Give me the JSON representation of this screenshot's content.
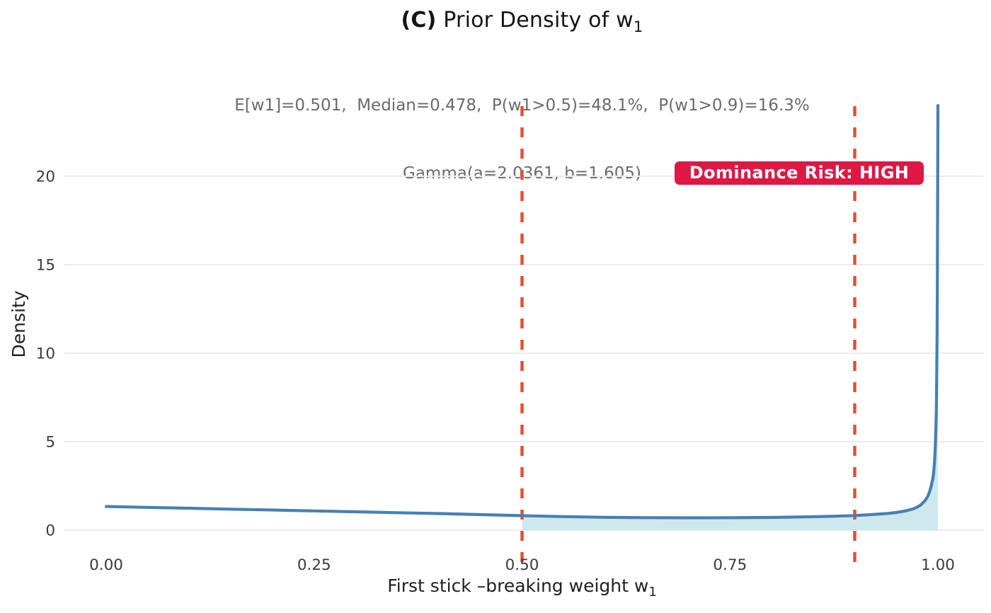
{
  "title": {
    "prefix": "(C)",
    "main": " Prior Density of w",
    "subscript": "1"
  },
  "subtitle": {
    "line1": "E[w1]=0.501,  Median=0.478,  P(w1>0.5)=48.1%,  P(w1>0.9)=16.3%",
    "line2": "Gamma(a=2.0361, b=1.605)"
  },
  "badge": {
    "label": "Dominance Risk: HIGH",
    "bg_color": "#dc1843",
    "text_color": "#ffffff"
  },
  "axes": {
    "xlabel_main": "First stick –breaking weight w",
    "xlabel_subscript": "1",
    "ylabel": "Density"
  },
  "colors": {
    "curve": "#4680b2",
    "area_fill": "#cde9ee",
    "dashed_line": "#e05038",
    "grid": "#ececec",
    "tick_label": "#3b3b3b",
    "subtitle_text": "#6b6b6b",
    "background": "#ffffff"
  },
  "chart_data": {
    "type": "area",
    "title": "(C) Prior Density of w1",
    "subtitle": "E[w1]=0.501, Median=0.478, P(w1>0.5)=48.1%, P(w1>0.9)=16.3%; Gamma(a=2.0361, b=1.605)",
    "xlabel": "First stick-breaking weight w1",
    "ylabel": "Density",
    "xlim": [
      -0.05,
      1.05
    ],
    "ylim": [
      -2.0,
      24.2
    ],
    "grid": "horizontal-only",
    "legend": "none",
    "x_ticks": {
      "values": [
        0.0,
        0.25,
        0.5,
        0.75,
        1.0
      ],
      "labels": [
        "0.00",
        "0.25",
        "0.50",
        "0.75",
        "1.00"
      ]
    },
    "y_ticks": {
      "values": [
        0,
        5,
        10,
        15,
        20
      ],
      "labels": [
        "0",
        "5",
        "10",
        "15",
        "20"
      ]
    },
    "vlines": [
      {
        "x": 0.5,
        "style": "dashed",
        "color": "#e05038"
      },
      {
        "x": 0.9,
        "style": "dashed",
        "color": "#e05038"
      }
    ],
    "shaded_region": {
      "x_from": 0.5,
      "x_to": 1.0,
      "fill": "#cde9ee"
    },
    "annotation": {
      "text": "Dominance Risk: HIGH"
    },
    "series": [
      {
        "name": "Prior density of w1",
        "color": "#4680b2",
        "points": [
          [
            0.0,
            1.34
          ],
          [
            0.05,
            1.29
          ],
          [
            0.1,
            1.24
          ],
          [
            0.15,
            1.19
          ],
          [
            0.2,
            1.14
          ],
          [
            0.25,
            1.09
          ],
          [
            0.3,
            1.04
          ],
          [
            0.35,
            0.99
          ],
          [
            0.4,
            0.94
          ],
          [
            0.45,
            0.88
          ],
          [
            0.5,
            0.82
          ],
          [
            0.55,
            0.77
          ],
          [
            0.6,
            0.73
          ],
          [
            0.65,
            0.71
          ],
          [
            0.7,
            0.7
          ],
          [
            0.75,
            0.705
          ],
          [
            0.8,
            0.72
          ],
          [
            0.85,
            0.76
          ],
          [
            0.875,
            0.79
          ],
          [
            0.9,
            0.83
          ],
          [
            0.92,
            0.88
          ],
          [
            0.94,
            0.95
          ],
          [
            0.95,
            1.0
          ],
          [
            0.96,
            1.08
          ],
          [
            0.97,
            1.2
          ],
          [
            0.975,
            1.3
          ],
          [
            0.98,
            1.45
          ],
          [
            0.985,
            1.7
          ],
          [
            0.988,
            1.93
          ],
          [
            0.99,
            2.18
          ],
          [
            0.992,
            2.5
          ],
          [
            0.994,
            2.95
          ],
          [
            0.995,
            3.3
          ],
          [
            0.996,
            3.9
          ],
          [
            0.997,
            4.9
          ],
          [
            0.998,
            6.6
          ],
          [
            0.9985,
            8.2
          ],
          [
            0.999,
            10.8
          ],
          [
            0.9993,
            13.6
          ],
          [
            0.9996,
            17.5
          ],
          [
            0.9998,
            21.0
          ],
          [
            1.0,
            24.0
          ]
        ]
      }
    ]
  }
}
